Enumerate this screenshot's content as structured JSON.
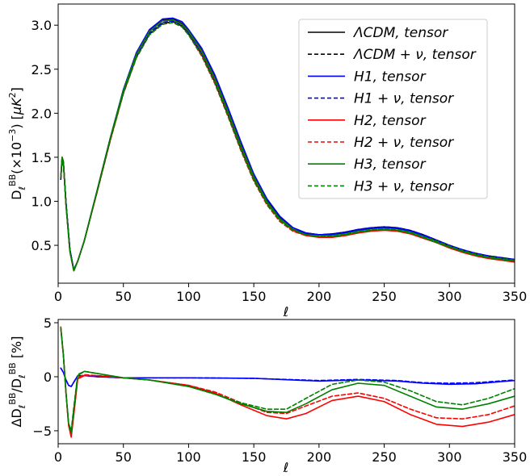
{
  "chart_data": [
    {
      "type": "line",
      "xlabel": "ℓ",
      "ylabel": "D_ℓ^BB(×10⁻³) [μK²]",
      "xlim": [
        0,
        350
      ],
      "ylim": [
        0.07,
        3.24
      ],
      "xticks": [
        "0",
        "50",
        "100",
        "150",
        "200",
        "250",
        "300",
        "350"
      ],
      "yticks": [
        "0.5",
        "1.0",
        "1.5",
        "2.0",
        "2.5",
        "3.0"
      ],
      "xtick_values": [
        0,
        50,
        100,
        150,
        200,
        250,
        300,
        350
      ],
      "ytick_values": [
        0.5,
        1.0,
        1.5,
        2.0,
        2.5,
        3.0
      ],
      "legend_position": "top-right",
      "grid": false,
      "series": [
        {
          "name": "ΛCDM, tensor",
          "color": "#000000",
          "style": "solid",
          "x": [
            2,
            3,
            4,
            6,
            9,
            12,
            15,
            20,
            30,
            40,
            50,
            60,
            70,
            80,
            88,
            95,
            100,
            110,
            120,
            130,
            140,
            150,
            160,
            170,
            180,
            190,
            200,
            210,
            220,
            230,
            240,
            250,
            260,
            270,
            280,
            290,
            300,
            310,
            320,
            330,
            340,
            350
          ],
          "y": [
            1.25,
            1.48,
            1.44,
            0.98,
            0.45,
            0.22,
            0.32,
            0.55,
            1.13,
            1.72,
            2.26,
            2.68,
            2.94,
            3.06,
            3.07,
            3.02,
            2.94,
            2.72,
            2.42,
            2.05,
            1.66,
            1.3,
            1.02,
            0.82,
            0.7,
            0.64,
            0.62,
            0.62,
            0.64,
            0.67,
            0.69,
            0.7,
            0.69,
            0.66,
            0.61,
            0.55,
            0.49,
            0.44,
            0.4,
            0.37,
            0.35,
            0.33
          ]
        },
        {
          "name": "ΛCDM + ν, tensor",
          "color": "#000000",
          "style": "dashed",
          "x": [
            2,
            3,
            4,
            6,
            9,
            12,
            15,
            20,
            30,
            40,
            50,
            60,
            70,
            80,
            88,
            95,
            100,
            110,
            120,
            130,
            140,
            150,
            160,
            170,
            180,
            190,
            200,
            210,
            220,
            230,
            240,
            250,
            260,
            270,
            280,
            290,
            300,
            310,
            320,
            330,
            340,
            350
          ],
          "y": [
            1.25,
            1.48,
            1.44,
            0.98,
            0.45,
            0.22,
            0.32,
            0.55,
            1.12,
            1.7,
            2.23,
            2.64,
            2.9,
            3.02,
            3.04,
            2.99,
            2.9,
            2.67,
            2.36,
            1.99,
            1.6,
            1.25,
            0.98,
            0.79,
            0.68,
            0.63,
            0.62,
            0.63,
            0.65,
            0.68,
            0.7,
            0.71,
            0.7,
            0.67,
            0.62,
            0.56,
            0.5,
            0.45,
            0.41,
            0.38,
            0.36,
            0.34
          ]
        },
        {
          "name": "H1, tensor",
          "color": "#0000ff",
          "style": "solid",
          "x": [
            2,
            3,
            4,
            6,
            9,
            12,
            15,
            20,
            30,
            40,
            50,
            60,
            70,
            80,
            88,
            95,
            100,
            110,
            120,
            130,
            140,
            150,
            160,
            170,
            180,
            190,
            200,
            210,
            220,
            230,
            240,
            250,
            260,
            270,
            280,
            290,
            300,
            310,
            320,
            330,
            340,
            350
          ],
          "y": [
            1.26,
            1.49,
            1.44,
            0.98,
            0.45,
            0.22,
            0.32,
            0.55,
            1.13,
            1.72,
            2.27,
            2.69,
            2.95,
            3.07,
            3.08,
            3.04,
            2.95,
            2.74,
            2.44,
            2.07,
            1.68,
            1.31,
            1.03,
            0.83,
            0.7,
            0.64,
            0.62,
            0.62,
            0.64,
            0.67,
            0.69,
            0.7,
            0.69,
            0.66,
            0.61,
            0.55,
            0.49,
            0.44,
            0.4,
            0.37,
            0.35,
            0.33
          ]
        },
        {
          "name": "H1 + ν, tensor",
          "color": "#0000ff",
          "style": "dashed",
          "x": [
            2,
            3,
            4,
            6,
            9,
            12,
            15,
            20,
            30,
            40,
            50,
            60,
            70,
            80,
            88,
            95,
            100,
            110,
            120,
            130,
            140,
            150,
            160,
            170,
            180,
            190,
            200,
            210,
            220,
            230,
            240,
            250,
            260,
            270,
            280,
            290,
            300,
            310,
            320,
            330,
            340,
            350
          ],
          "y": [
            1.26,
            1.49,
            1.44,
            0.98,
            0.45,
            0.22,
            0.32,
            0.55,
            1.12,
            1.71,
            2.24,
            2.65,
            2.91,
            3.03,
            3.05,
            3.0,
            2.91,
            2.68,
            2.37,
            2.0,
            1.61,
            1.26,
            0.99,
            0.8,
            0.68,
            0.63,
            0.62,
            0.63,
            0.65,
            0.68,
            0.7,
            0.71,
            0.7,
            0.67,
            0.62,
            0.56,
            0.5,
            0.45,
            0.41,
            0.38,
            0.36,
            0.34
          ]
        },
        {
          "name": "H2, tensor",
          "color": "#ff0000",
          "style": "solid",
          "x": [
            2,
            3,
            4,
            6,
            9,
            12,
            15,
            20,
            30,
            40,
            50,
            60,
            70,
            80,
            88,
            95,
            100,
            110,
            120,
            130,
            140,
            150,
            160,
            170,
            180,
            190,
            200,
            210,
            220,
            230,
            240,
            250,
            260,
            270,
            280,
            290,
            300,
            310,
            320,
            330,
            340,
            350
          ],
          "y": [
            1.27,
            1.5,
            1.45,
            0.96,
            0.43,
            0.21,
            0.32,
            0.55,
            1.12,
            1.71,
            2.25,
            2.67,
            2.93,
            3.05,
            3.06,
            3.01,
            2.93,
            2.7,
            2.39,
            2.02,
            1.63,
            1.27,
            0.99,
            0.79,
            0.67,
            0.61,
            0.59,
            0.59,
            0.61,
            0.64,
            0.66,
            0.67,
            0.66,
            0.63,
            0.58,
            0.53,
            0.47,
            0.42,
            0.38,
            0.35,
            0.33,
            0.31
          ]
        },
        {
          "name": "H2 + ν, tensor",
          "color": "#ff0000",
          "style": "dashed",
          "x": [
            2,
            3,
            4,
            6,
            9,
            12,
            15,
            20,
            30,
            40,
            50,
            60,
            70,
            80,
            88,
            95,
            100,
            110,
            120,
            130,
            140,
            150,
            160,
            170,
            180,
            190,
            200,
            210,
            220,
            230,
            240,
            250,
            260,
            270,
            280,
            290,
            300,
            310,
            320,
            330,
            340,
            350
          ],
          "y": [
            1.27,
            1.5,
            1.45,
            0.96,
            0.43,
            0.21,
            0.32,
            0.55,
            1.11,
            1.69,
            2.22,
            2.63,
            2.89,
            3.01,
            3.03,
            2.98,
            2.89,
            2.65,
            2.34,
            1.97,
            1.58,
            1.23,
            0.96,
            0.77,
            0.66,
            0.61,
            0.6,
            0.6,
            0.62,
            0.65,
            0.67,
            0.68,
            0.67,
            0.64,
            0.59,
            0.54,
            0.48,
            0.43,
            0.39,
            0.36,
            0.34,
            0.32
          ]
        },
        {
          "name": "H3, tensor",
          "color": "#008000",
          "style": "solid",
          "x": [
            2,
            3,
            4,
            6,
            9,
            12,
            15,
            20,
            30,
            40,
            50,
            60,
            70,
            80,
            88,
            95,
            100,
            110,
            120,
            130,
            140,
            150,
            160,
            170,
            180,
            190,
            200,
            210,
            220,
            230,
            240,
            250,
            260,
            270,
            280,
            290,
            300,
            310,
            320,
            330,
            340,
            350
          ],
          "y": [
            1.27,
            1.5,
            1.45,
            0.96,
            0.43,
            0.21,
            0.32,
            0.55,
            1.13,
            1.72,
            2.26,
            2.67,
            2.93,
            3.05,
            3.06,
            3.01,
            2.93,
            2.71,
            2.4,
            2.03,
            1.64,
            1.28,
            1.0,
            0.8,
            0.68,
            0.62,
            0.6,
            0.6,
            0.62,
            0.65,
            0.67,
            0.68,
            0.67,
            0.64,
            0.59,
            0.53,
            0.48,
            0.43,
            0.39,
            0.36,
            0.34,
            0.32
          ]
        },
        {
          "name": "H3 + ν, tensor",
          "color": "#008000",
          "style": "dashed",
          "x": [
            2,
            3,
            4,
            6,
            9,
            12,
            15,
            20,
            30,
            40,
            50,
            60,
            70,
            80,
            88,
            95,
            100,
            110,
            120,
            130,
            140,
            150,
            160,
            170,
            180,
            190,
            200,
            210,
            220,
            230,
            240,
            250,
            260,
            270,
            280,
            290,
            300,
            310,
            320,
            330,
            340,
            350
          ],
          "y": [
            1.27,
            1.5,
            1.45,
            0.96,
            0.43,
            0.21,
            0.32,
            0.55,
            1.12,
            1.7,
            2.23,
            2.63,
            2.89,
            3.01,
            3.03,
            2.98,
            2.89,
            2.66,
            2.35,
            1.98,
            1.59,
            1.24,
            0.97,
            0.78,
            0.67,
            0.62,
            0.61,
            0.61,
            0.63,
            0.66,
            0.68,
            0.69,
            0.68,
            0.65,
            0.6,
            0.55,
            0.49,
            0.44,
            0.4,
            0.37,
            0.35,
            0.33
          ]
        }
      ]
    },
    {
      "type": "line",
      "xlabel": "ℓ",
      "ylabel": "ΔD_ℓ^BB/D_ℓ^BB [%]",
      "xlim": [
        0,
        350
      ],
      "ylim": [
        -6.2,
        5.3
      ],
      "xticks": [
        "0",
        "50",
        "100",
        "150",
        "200",
        "250",
        "300",
        "350"
      ],
      "yticks": [
        "−5",
        "0",
        "5"
      ],
      "xtick_values": [
        0,
        50,
        100,
        150,
        200,
        250,
        300,
        350
      ],
      "ytick_values": [
        -5,
        0,
        5
      ],
      "grid": false,
      "series": [
        {
          "color": "#0000ff",
          "style": "solid",
          "x": [
            2,
            4,
            6,
            8,
            10,
            12,
            15,
            20,
            30,
            50,
            100,
            150,
            200,
            230,
            260,
            280,
            300,
            320,
            350
          ],
          "y": [
            0.8,
            0.4,
            -0.3,
            -0.8,
            -0.9,
            -0.5,
            0.1,
            0.1,
            0.0,
            -0.1,
            -0.1,
            -0.15,
            -0.4,
            -0.3,
            -0.4,
            -0.6,
            -0.7,
            -0.65,
            -0.35
          ]
        },
        {
          "color": "#0000ff",
          "style": "dashed",
          "x": [
            2,
            4,
            6,
            8,
            10,
            12,
            15,
            20,
            30,
            50,
            100,
            150,
            200,
            230,
            260,
            280,
            300,
            320,
            350
          ],
          "y": [
            0.8,
            0.4,
            -0.3,
            -0.8,
            -0.9,
            -0.5,
            0.1,
            0.1,
            0.0,
            -0.1,
            -0.1,
            -0.15,
            -0.35,
            -0.25,
            -0.35,
            -0.55,
            -0.6,
            -0.55,
            -0.3
          ]
        },
        {
          "color": "#ff0000",
          "style": "solid",
          "x": [
            2,
            4,
            6,
            8,
            10,
            12,
            15,
            20,
            30,
            50,
            70,
            100,
            120,
            140,
            160,
            175,
            190,
            210,
            230,
            250,
            270,
            290,
            310,
            330,
            350
          ],
          "y": [
            4.6,
            2.0,
            -1.5,
            -4.5,
            -5.6,
            -3.5,
            -0.2,
            0.1,
            0.1,
            -0.1,
            -0.3,
            -0.8,
            -1.5,
            -2.6,
            -3.6,
            -3.9,
            -3.4,
            -2.2,
            -1.8,
            -2.3,
            -3.5,
            -4.4,
            -4.6,
            -4.2,
            -3.5
          ]
        },
        {
          "color": "#ff0000",
          "style": "dashed",
          "x": [
            2,
            4,
            6,
            8,
            10,
            12,
            15,
            20,
            30,
            50,
            70,
            100,
            120,
            140,
            160,
            175,
            190,
            210,
            230,
            250,
            270,
            290,
            310,
            330,
            350
          ],
          "y": [
            4.6,
            2.0,
            -1.5,
            -4.5,
            -5.4,
            -3.3,
            -0.1,
            0.2,
            0.1,
            -0.1,
            -0.3,
            -0.8,
            -1.4,
            -2.4,
            -3.3,
            -3.4,
            -2.7,
            -1.8,
            -1.5,
            -2.0,
            -3.0,
            -3.8,
            -3.9,
            -3.5,
            -2.7
          ]
        },
        {
          "color": "#008000",
          "style": "solid",
          "x": [
            2,
            4,
            6,
            8,
            10,
            12,
            15,
            20,
            30,
            50,
            70,
            100,
            120,
            140,
            160,
            175,
            190,
            210,
            230,
            250,
            270,
            290,
            310,
            330,
            350
          ],
          "y": [
            4.5,
            2.0,
            -1.5,
            -4.3,
            -5.2,
            -3.0,
            0.1,
            0.5,
            0.3,
            -0.1,
            -0.3,
            -0.9,
            -1.6,
            -2.5,
            -3.2,
            -3.3,
            -2.5,
            -1.2,
            -0.6,
            -0.8,
            -1.8,
            -2.8,
            -3.0,
            -2.5,
            -1.8
          ]
        },
        {
          "color": "#008000",
          "style": "dashed",
          "x": [
            2,
            4,
            6,
            8,
            10,
            12,
            15,
            20,
            30,
            50,
            70,
            100,
            120,
            140,
            160,
            175,
            190,
            210,
            230,
            250,
            270,
            290,
            310,
            330,
            350
          ],
          "y": [
            4.5,
            2.0,
            -1.5,
            -4.3,
            -5.0,
            -2.8,
            0.2,
            0.5,
            0.3,
            -0.1,
            -0.3,
            -0.9,
            -1.6,
            -2.4,
            -3.0,
            -3.0,
            -2.0,
            -0.7,
            -0.3,
            -0.5,
            -1.3,
            -2.3,
            -2.6,
            -2.0,
            -1.1
          ]
        }
      ]
    }
  ]
}
